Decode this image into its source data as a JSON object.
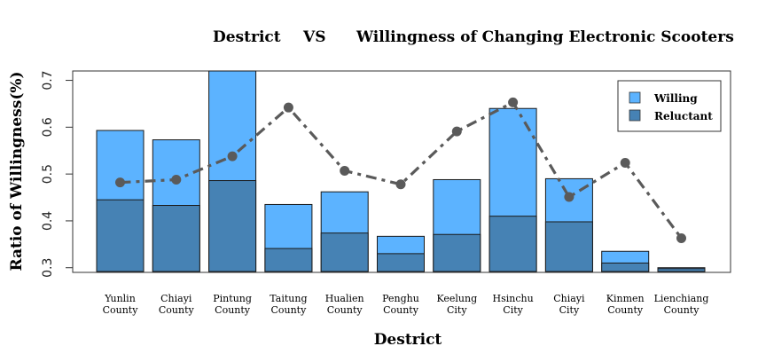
{
  "chart_data": {
    "type": "bar",
    "title_parts": [
      "Destrict",
      "VS",
      "Willingness of Changing Electronic Scooters"
    ],
    "xlabel": "Destrict",
    "ylabel": "Ratio of Willingness(%)",
    "ylim": [
      0.29,
      0.72
    ],
    "yticks": [
      "0.3",
      "0.4",
      "0.5",
      "0.6",
      "0.7"
    ],
    "ytick_values": [
      0.3,
      0.4,
      0.5,
      0.6,
      0.7
    ],
    "categories": [
      [
        "Yunlin",
        "County"
      ],
      [
        "Chiayi",
        "County"
      ],
      [
        "Pintung",
        "County"
      ],
      [
        "Taitung",
        "County"
      ],
      [
        "Hualien",
        "County"
      ],
      [
        "Penghu",
        "County"
      ],
      [
        "Keelung",
        "City"
      ],
      [
        "Hsinchu",
        "City"
      ],
      [
        "Chiayi",
        "City"
      ],
      [
        "Kinmen",
        "County"
      ],
      [
        "Lienchiang",
        "County"
      ]
    ],
    "series": [
      {
        "name": "Willing",
        "color": "#5CB3FF",
        "values": [
          0.593,
          0.573,
          0.72,
          0.435,
          0.462,
          0.367,
          0.488,
          0.64,
          0.49,
          0.335,
          0.3
        ]
      },
      {
        "name": "Reluctant",
        "color": "#4682B4",
        "values": [
          0.445,
          0.433,
          0.486,
          0.341,
          0.374,
          0.33,
          0.371,
          0.41,
          0.398,
          0.31,
          0.298
        ]
      }
    ],
    "line": {
      "color": "#5A5A5A",
      "style": "dashed",
      "values": [
        0.482,
        0.488,
        0.538,
        0.642,
        0.507,
        0.478,
        0.591,
        0.653,
        0.451,
        0.524,
        0.363
      ]
    },
    "legend_position": "top-right",
    "grid": false
  }
}
